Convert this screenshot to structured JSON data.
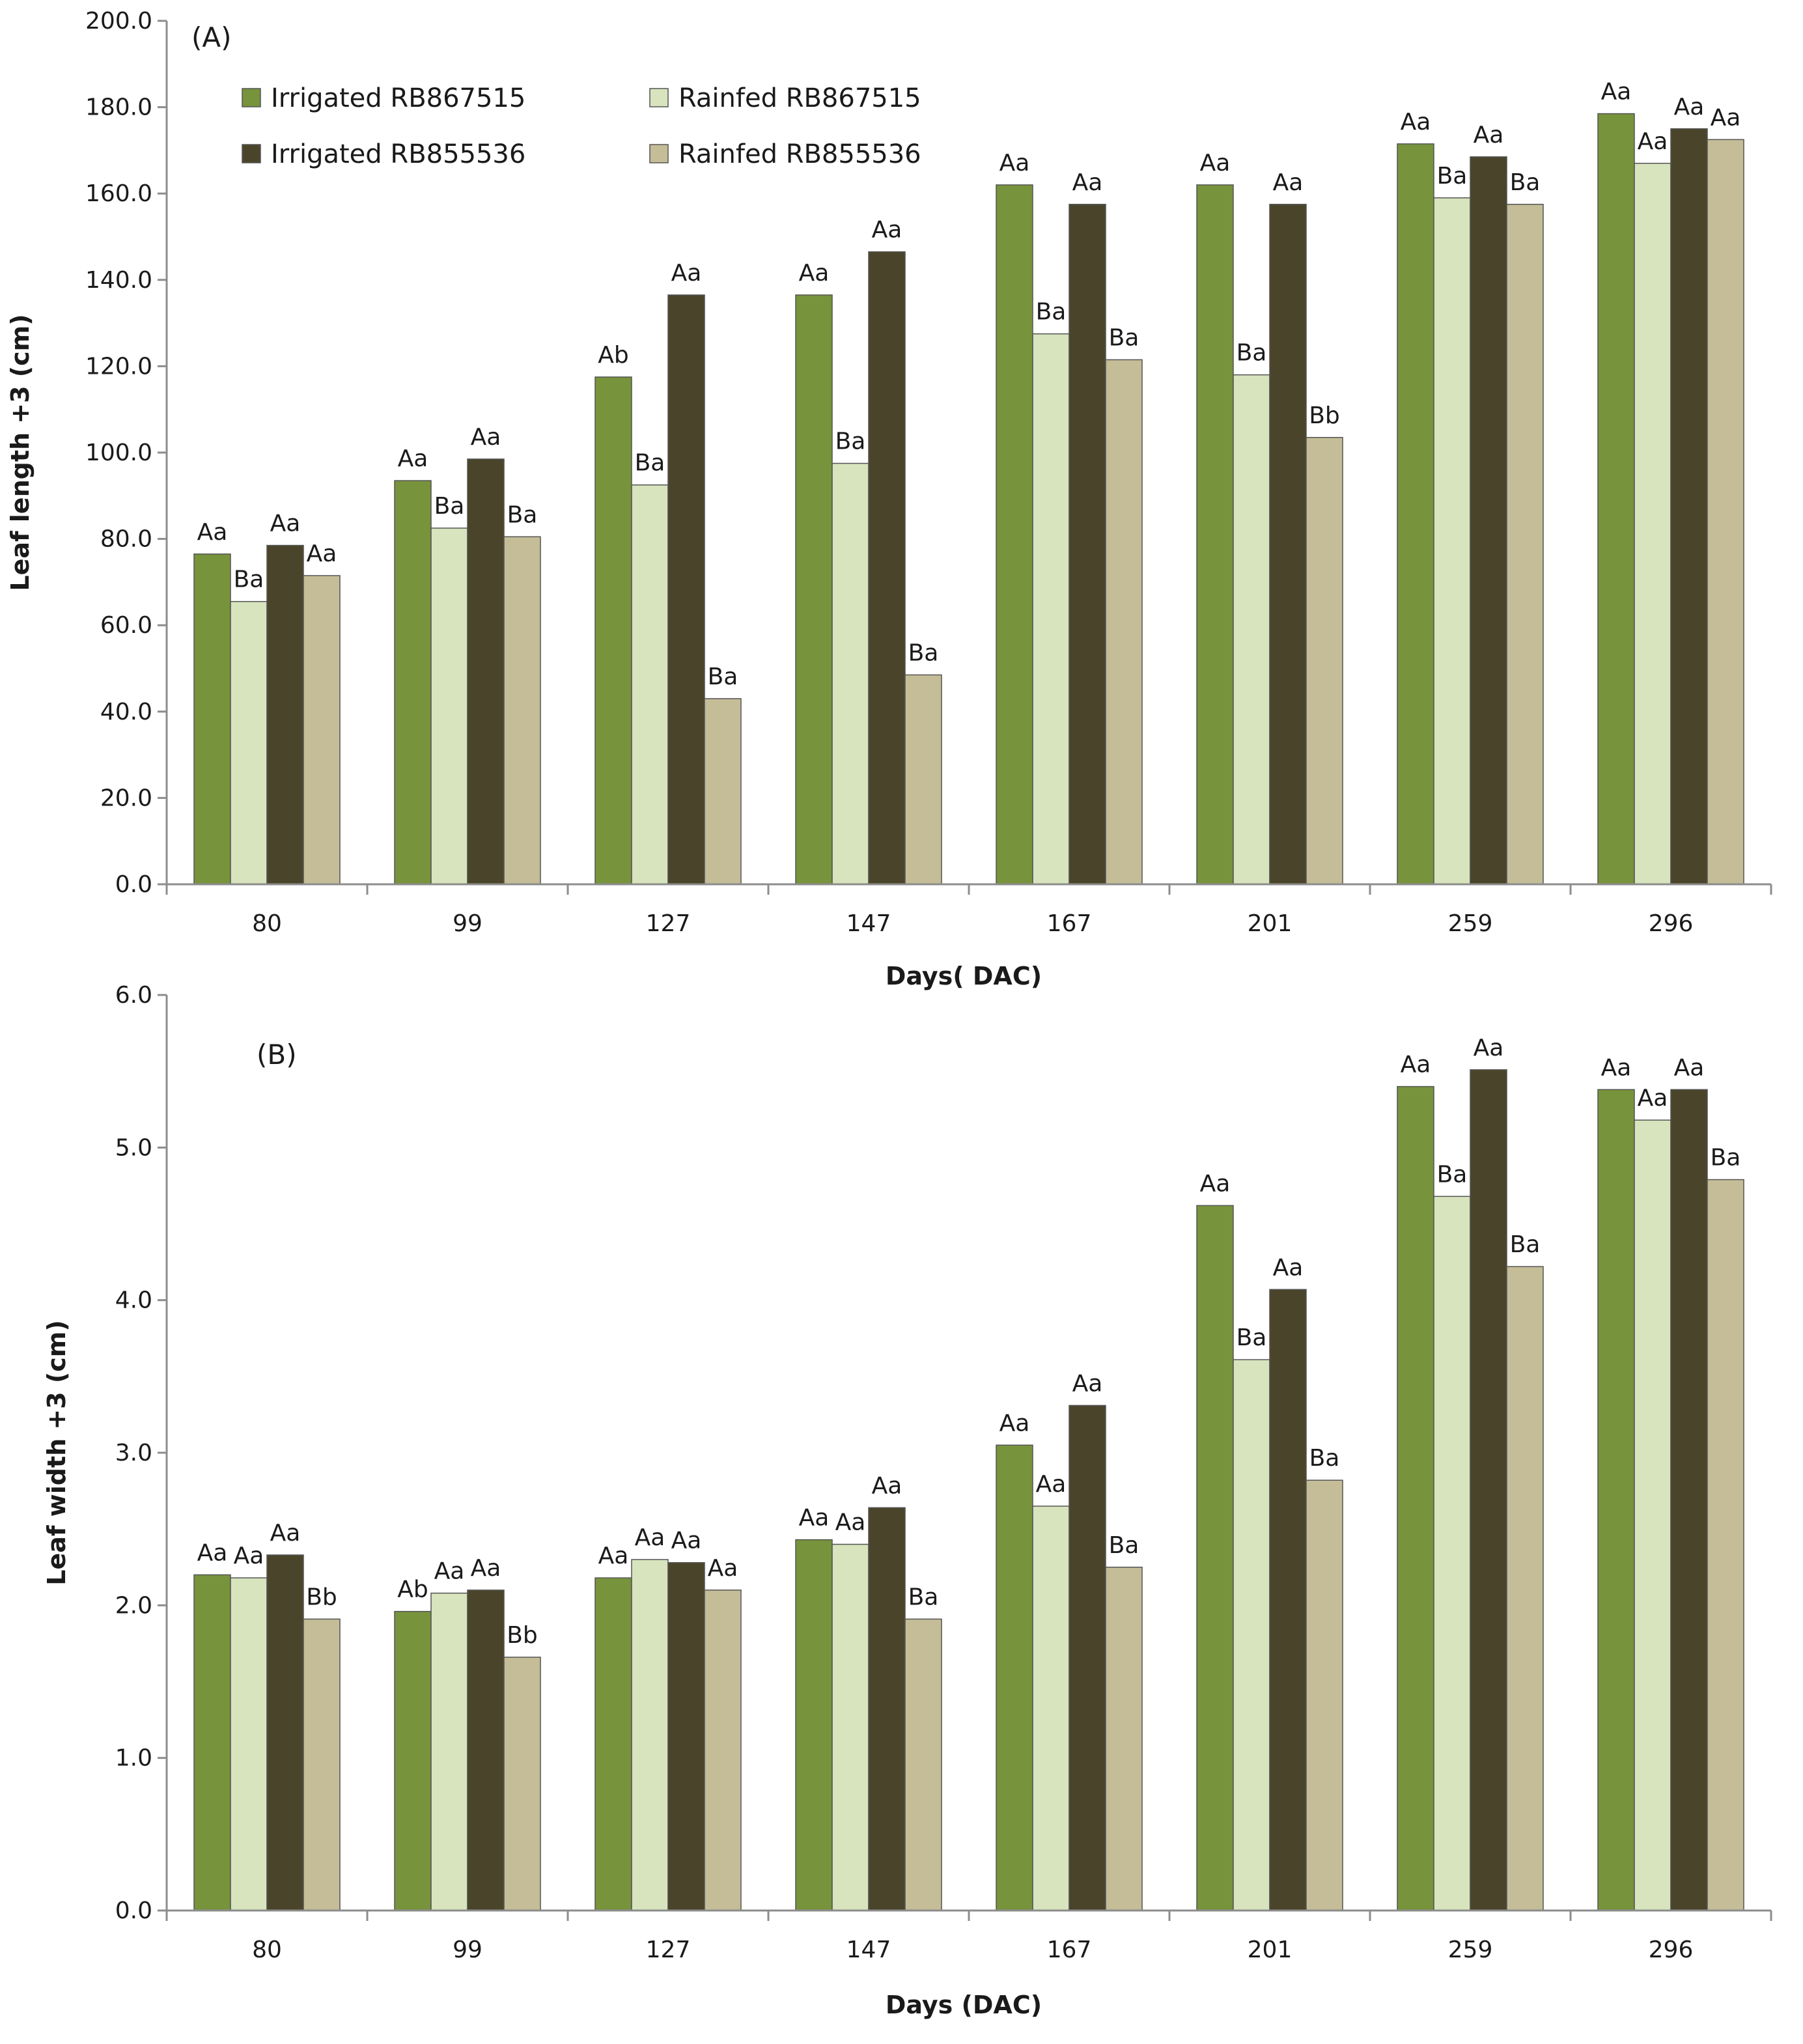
{
  "chart_data": [
    {
      "type": "bar",
      "panel": "(A)",
      "xlabel": "Days( DAC)",
      "ylabel": "Leaf length +3 (cm)",
      "ylim": [
        0,
        200
      ],
      "ytick_step": 20,
      "ytick_labels": [
        "0.0",
        "20.0",
        "40.0",
        "60.0",
        "80.0",
        "100.0",
        "120.0",
        "140.0",
        "160.0",
        "180.0",
        "200.0"
      ],
      "categories": [
        "80",
        "99",
        "127",
        "147",
        "167",
        "201",
        "259",
        "296"
      ],
      "legend_position": "top-left",
      "series": [
        {
          "name": "Irrigated RB867515",
          "color": "#77933c",
          "values": [
            76.5,
            93.5,
            117.5,
            136.5,
            162.0,
            162.0,
            171.5,
            178.5
          ],
          "labels": [
            "Aa",
            "Aa",
            "Ab",
            "Aa",
            "Aa",
            "Aa",
            "Aa",
            "Aa"
          ]
        },
        {
          "name": "Rainfed RB867515",
          "color": "#d7e4bd",
          "values": [
            65.5,
            82.5,
            92.5,
            97.5,
            127.5,
            118.0,
            159.0,
            167.0
          ],
          "labels": [
            "Ba",
            "Ba",
            "Ba",
            "Ba",
            "Ba",
            "Ba",
            "Ba",
            "Aa"
          ]
        },
        {
          "name": "Irrigated RB855536",
          "color": "#4a452a",
          "values": [
            78.5,
            98.5,
            136.5,
            146.5,
            157.5,
            157.5,
            168.5,
            175.0
          ],
          "labels": [
            "Aa",
            "Aa",
            "Aa",
            "Aa",
            "Aa",
            "Aa",
            "Aa",
            "Aa"
          ]
        },
        {
          "name": "Rainfed RB855536",
          "color": "#c4bd97",
          "values": [
            71.5,
            80.5,
            43.0,
            48.5,
            121.5,
            103.5,
            157.5,
            172.5
          ],
          "labels": [
            "Aa",
            "Ba",
            "Ba",
            "Ba",
            "Ba",
            "Bb",
            "Ba",
            "Aa"
          ]
        }
      ]
    },
    {
      "type": "bar",
      "panel": "(B)",
      "xlabel": "Days  (DAC)",
      "ylabel": "Leaf width +3 (cm)",
      "ylim": [
        0,
        6
      ],
      "ytick_step": 1,
      "ytick_labels": [
        "0.0",
        "1.0",
        "2.0",
        "3.0",
        "4.0",
        "5.0",
        "6.0"
      ],
      "categories": [
        "80",
        "99",
        "127",
        "147",
        "167",
        "201",
        "259",
        "296"
      ],
      "series": [
        {
          "name": "Irrigated RB867515",
          "color": "#77933c",
          "values": [
            2.2,
            1.96,
            2.18,
            2.43,
            3.05,
            4.62,
            5.4,
            5.38
          ],
          "labels": [
            "Aa",
            "Ab",
            "Aa",
            "Aa",
            "Aa",
            "Aa",
            "Aa",
            "Aa"
          ]
        },
        {
          "name": "Rainfed RB867515",
          "color": "#d7e4bd",
          "values": [
            2.18,
            2.08,
            2.3,
            2.4,
            2.65,
            3.61,
            4.68,
            5.18
          ],
          "labels": [
            "Aa",
            "Aa",
            "Aa",
            "Aa",
            "Aa",
            "Ba",
            "Ba",
            "Aa"
          ]
        },
        {
          "name": "Irrigated RB855536",
          "color": "#4a452a",
          "values": [
            2.33,
            2.1,
            2.28,
            2.64,
            3.31,
            4.07,
            5.51,
            5.38
          ],
          "labels": [
            "Aa",
            "Aa",
            "Aa",
            "Aa",
            "Aa",
            "Aa",
            "Aa",
            "Aa"
          ]
        },
        {
          "name": "Rainfed RB855536",
          "color": "#c4bd97",
          "values": [
            1.91,
            1.66,
            2.1,
            1.91,
            2.25,
            2.82,
            4.22,
            4.79
          ],
          "labels": [
            "Bb",
            "Bb",
            "Aa",
            "Ba",
            "Ba",
            "Ba",
            "Ba",
            "Ba"
          ]
        }
      ]
    }
  ]
}
